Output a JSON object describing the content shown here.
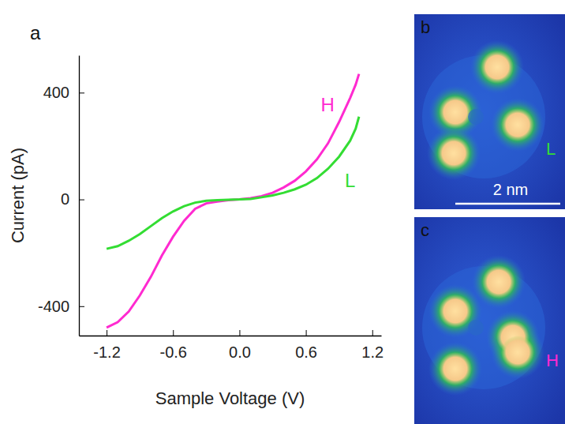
{
  "chart_data": {
    "type": "line",
    "title": "a",
    "xlabel": "Sample Voltage (V)",
    "ylabel": "Current (pA)",
    "x": [
      -1.2,
      -1.1,
      -1.0,
      -0.9,
      -0.8,
      -0.7,
      -0.6,
      -0.5,
      -0.4,
      -0.3,
      -0.2,
      -0.1,
      0.0,
      0.1,
      0.2,
      0.3,
      0.4,
      0.5,
      0.6,
      0.7,
      0.8,
      0.9,
      1.0,
      1.05,
      1.08
    ],
    "series": [
      {
        "name": "H",
        "color": "#ff2ad0",
        "values": [
          -480,
          -460,
          -420,
          -360,
          -290,
          -210,
          -140,
          -80,
          -35,
          -15,
          -8,
          -3,
          0,
          5,
          12,
          25,
          45,
          70,
          105,
          150,
          210,
          290,
          380,
          430,
          470
        ]
      },
      {
        "name": "L",
        "color": "#33dd33",
        "values": [
          -185,
          -175,
          -155,
          -130,
          -100,
          -70,
          -45,
          -25,
          -12,
          -5,
          -3,
          -1,
          0,
          2,
          8,
          15,
          25,
          38,
          55,
          80,
          115,
          160,
          220,
          265,
          310
        ]
      }
    ],
    "xlim": [
      -1.45,
      1.28
    ],
    "xticks": [
      -1.2,
      -0.6,
      {
        "value": 0,
        "label": "0.0"
      },
      0.6,
      1.2
    ],
    "ylim": [
      -510,
      540
    ],
    "yticks": [
      -400,
      0,
      400
    ]
  },
  "images": [
    {
      "label": "b",
      "text": "L",
      "scale_bar": "2 nm"
    },
    {
      "label": "c",
      "text": "H"
    }
  ]
}
